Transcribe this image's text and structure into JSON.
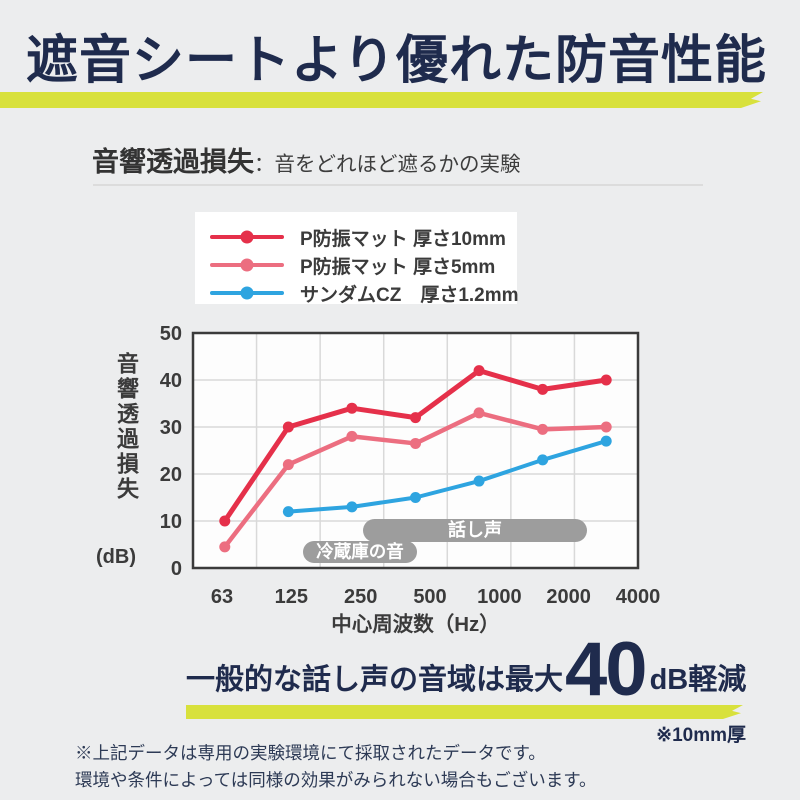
{
  "header": {
    "title": "遮音シートより優れた防音性能",
    "title_color": "#1f2b4d",
    "accent_color": "#d8e13c"
  },
  "section": {
    "title": "音響透過損失",
    "subtitle": "：音をどれほど遮るかの実験"
  },
  "chart_data": {
    "type": "line",
    "categories": [
      "63",
      "125",
      "250",
      "500",
      "1000",
      "2000",
      "4000"
    ],
    "series": [
      {
        "name": "P防振マット 厚さ10mm",
        "color": "#e5304a",
        "values": [
          10,
          30,
          34,
          32,
          42,
          38,
          40
        ]
      },
      {
        "name": "P防振マット 厚さ5mm",
        "color": "#ec6e80",
        "values": [
          4.5,
          22,
          28,
          26.5,
          33,
          29.5,
          30
        ]
      },
      {
        "name": "サンダムCZ　厚さ1.2mm",
        "color": "#2ea4e0",
        "values": [
          null,
          12,
          13,
          15,
          18.5,
          23,
          27
        ]
      }
    ],
    "xlabel": "中心周波数（Hz）",
    "ylabel": "音響透過損失",
    "ylabel_unit": "(dB)",
    "ylim": [
      0,
      50
    ],
    "yticks": [
      0,
      10,
      20,
      30,
      40,
      50
    ],
    "grid": true,
    "legend_position": "top",
    "plot_bg": "#fdfdfd",
    "grid_color": "#d9d9d9",
    "border_color": "#3b3b3b",
    "annotations": [
      {
        "label": "話し声",
        "pill_color": "#9d9d9d",
        "text_color": "#ffffff"
      },
      {
        "label": "冷蔵庫の音",
        "pill_color": "#9d9d9d",
        "text_color": "#ffffff"
      }
    ]
  },
  "tagline": {
    "prefix": "一般的な話し声の音域は最大",
    "value": "40",
    "suffix": "dB軽減",
    "note": "※10mm厚"
  },
  "footer": {
    "line1": "※上記データは専用の実験環境にて採取されたデータです。",
    "line2": "環境や条件によっては同様の効果がみられない場合もございます。"
  }
}
